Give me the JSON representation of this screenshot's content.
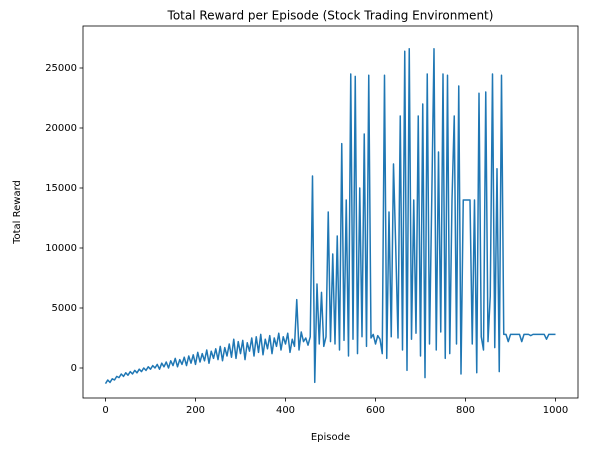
{
  "chart_data": {
    "type": "line",
    "title": "Total Reward per Episode (Stock Trading Environment)",
    "x_label": "Episode",
    "y_label": "Total Reward",
    "color": "#1f77b4",
    "xlim": [
      -50,
      1050
    ],
    "xticks": [
      0,
      200,
      400,
      600,
      800,
      1000
    ],
    "ylim": [
      -2500,
      28500
    ],
    "yticks": [
      0,
      5000,
      10000,
      15000,
      20000,
      25000
    ],
    "x": [
      0,
      5,
      10,
      15,
      20,
      25,
      30,
      35,
      40,
      45,
      50,
      55,
      60,
      65,
      70,
      75,
      80,
      85,
      90,
      95,
      100,
      105,
      110,
      115,
      120,
      125,
      130,
      135,
      140,
      145,
      150,
      155,
      160,
      165,
      170,
      175,
      180,
      185,
      190,
      195,
      200,
      205,
      210,
      215,
      220,
      225,
      230,
      235,
      240,
      245,
      250,
      255,
      260,
      265,
      270,
      275,
      280,
      285,
      290,
      295,
      300,
      305,
      310,
      315,
      320,
      325,
      330,
      335,
      340,
      345,
      350,
      355,
      360,
      365,
      370,
      375,
      380,
      385,
      390,
      395,
      400,
      405,
      410,
      415,
      420,
      425,
      430,
      435,
      440,
      445,
      450,
      455,
      460,
      465,
      470,
      475,
      480,
      485,
      490,
      495,
      500,
      505,
      510,
      515,
      520,
      525,
      530,
      535,
      540,
      545,
      550,
      555,
      560,
      565,
      570,
      575,
      580,
      585,
      590,
      595,
      600,
      605,
      610,
      615,
      620,
      625,
      630,
      635,
      640,
      645,
      650,
      655,
      660,
      665,
      670,
      675,
      680,
      685,
      690,
      695,
      700,
      705,
      710,
      715,
      720,
      725,
      730,
      735,
      740,
      745,
      750,
      755,
      760,
      765,
      770,
      775,
      780,
      785,
      790,
      795,
      800,
      805,
      810,
      815,
      820,
      825,
      830,
      835,
      840,
      845,
      850,
      855,
      860,
      865,
      870,
      875,
      880,
      885,
      890,
      895,
      900,
      905,
      910,
      915,
      920,
      925,
      930,
      935,
      940,
      945,
      950,
      955,
      960,
      965,
      970,
      975,
      980,
      985,
      990,
      995,
      1000
    ],
    "values": [
      -1300,
      -1000,
      -1200,
      -900,
      -1000,
      -700,
      -800,
      -500,
      -700,
      -400,
      -600,
      -300,
      -500,
      -200,
      -400,
      -100,
      -300,
      0,
      -200,
      100,
      -100,
      200,
      0,
      300,
      -100,
      400,
      100,
      500,
      0,
      600,
      200,
      800,
      100,
      700,
      300,
      900,
      200,
      1000,
      400,
      1100,
      300,
      1300,
      500,
      1200,
      600,
      1500,
      400,
      1400,
      800,
      1600,
      700,
      1800,
      600,
      1700,
      1000,
      2000,
      900,
      2400,
      800,
      2200,
      1200,
      2300,
      700,
      2100,
      1400,
      2500,
      1000,
      2600,
      1300,
      2800,
      1100,
      2400,
      1600,
      2700,
      1200,
      2500,
      1800,
      2900,
      1500,
      2600,
      2000,
      2900,
      1300,
      2400,
      1800,
      5700,
      1500,
      3000,
      2200,
      2500,
      1900,
      2600,
      16000,
      -1200,
      7000,
      2000,
      6300,
      1800,
      2600,
      13000,
      2200,
      9500,
      2000,
      11000,
      1500,
      18700,
      2300,
      14000,
      1000,
      24500,
      2400,
      24300,
      1200,
      15000,
      2600,
      19500,
      1800,
      24400,
      2500,
      2800,
      2000,
      2700,
      2400,
      1200,
      24400,
      800,
      13000,
      2600,
      17000,
      10000,
      2500,
      21000,
      1500,
      26400,
      -200,
      26600,
      2400,
      14000,
      2900,
      21000,
      1000,
      22000,
      -800,
      24500,
      2000,
      14000,
      26600,
      1500,
      18000,
      3000,
      24500,
      800,
      24400,
      1200,
      14000,
      21000,
      2000,
      23500,
      -500,
      14000,
      14000,
      14000,
      14000,
      2000,
      14000,
      -400,
      22900,
      2600,
      1500,
      23000,
      2200,
      6000,
      24500,
      1700,
      16600,
      -300,
      24400,
      2800,
      2800,
      2200,
      2800,
      2800,
      2800,
      2800,
      2800,
      2200,
      2800,
      2800,
      2800,
      2700,
      2800,
      2800,
      2800,
      2800,
      2800,
      2800,
      2400,
      2800,
      2800,
      2800,
      2800
    ]
  }
}
